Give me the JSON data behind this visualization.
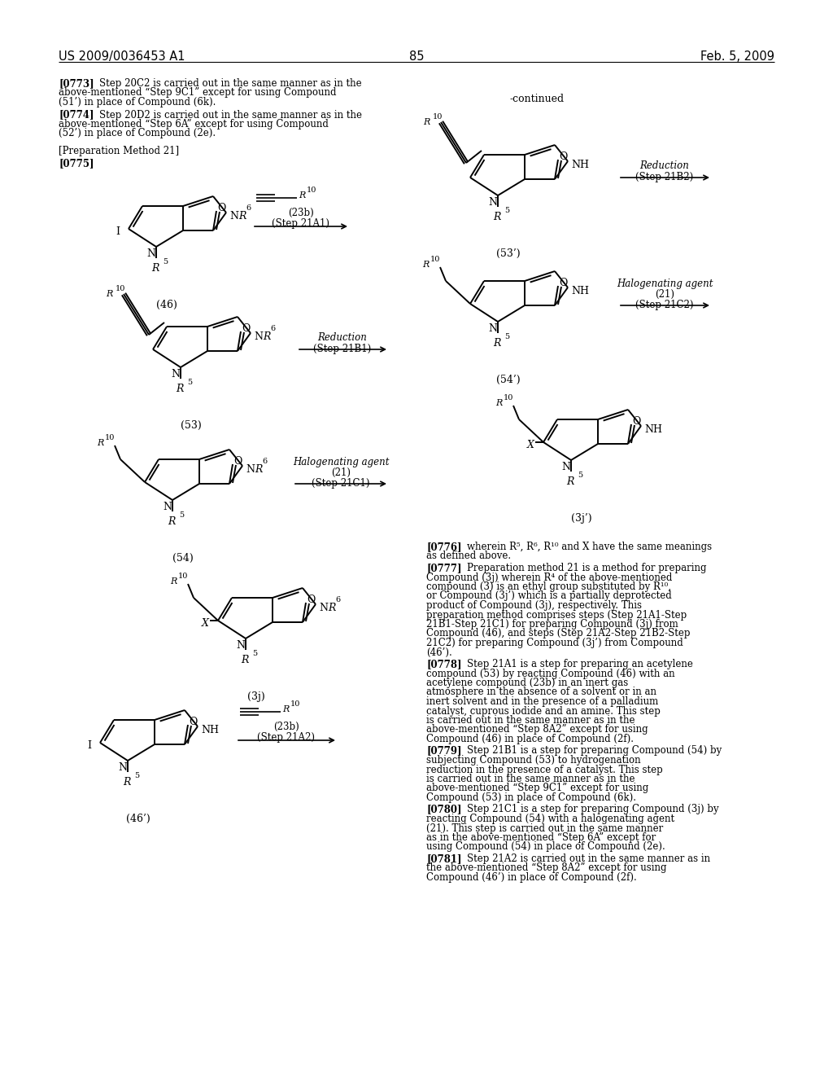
{
  "page_header_left": "US 2009/0036453 A1",
  "page_header_right": "Feb. 5, 2009",
  "page_number": "85",
  "bg": "#ffffff",
  "fg": "#000000",
  "left_paragraphs": [
    {
      "tag": "[0773]",
      "text": "Step 20C2 is carried out in the same manner as in the above-mentioned “Step 9C1” except for using Compound (51’) in place of Compound (6k)."
    },
    {
      "tag": "[0774]",
      "text": "Step 20D2 is carried out in the same manner as in the above-mentioned “Step 6A” except for using Compound (52’) in place of Compound (2e)."
    }
  ],
  "right_paragraphs": [
    {
      "tag": "[0776]",
      "text": "wherein R⁵, R⁶, R¹⁰ and X have the same meanings as defined above."
    },
    {
      "tag": "[0777]",
      "text": "Preparation method 21 is a method for preparing Compound (3j) wherein R⁴ of the above-mentioned compound (3) is an ethyl group substituted by R¹⁰, or Compound (3j’) which is a partially deprotected product of Compound (3j), respectively. This preparation method comprises steps (Step 21A1-Step 21B1-Step 21C1) for preparing Compound (3j) from Compound (46), and steps (Step 21A2-Step 21B2-Step 21C2) for preparing Compound (3j’) from Compound (46’)."
    },
    {
      "tag": "[0778]",
      "text": "Step 21A1 is a step for preparing an acetylene compound (53) by reacting Compound (46) with an acetylene compound (23b) in an inert gas atmosphere in the absence of a solvent or in an inert solvent and in the presence of a palladium catalyst, cuprous iodide and an amine. This step is carried out in the same manner as in the above-mentioned “Step 8A2” except for using Compound (46) in place of Compound (2f)."
    },
    {
      "tag": "[0779]",
      "text": "Step 21B1 is a step for preparing Compound (54) by subjecting Compound (53) to hydrogenation reduction in the presence of a catalyst. This step is carried out in the same manner as in the above-mentioned “Step 9C1” except for using Compound (53) in place of Compound (6k)."
    },
    {
      "tag": "[0780]",
      "text": "Step 21C1 is a step for preparing Compound (3j) by reacting Compound (54) with a halogenating agent (21). This step is carried out in the same manner as in the above-mentioned “Step 6A” except for using Compound (54) in place of Compound (2e)."
    },
    {
      "tag": "[0781]",
      "text": "Step 21A2 is carried out in the same manner as in the above-mentioned “Step 8A2” except for using Compound (46’) in place of Compound (2f)."
    }
  ]
}
